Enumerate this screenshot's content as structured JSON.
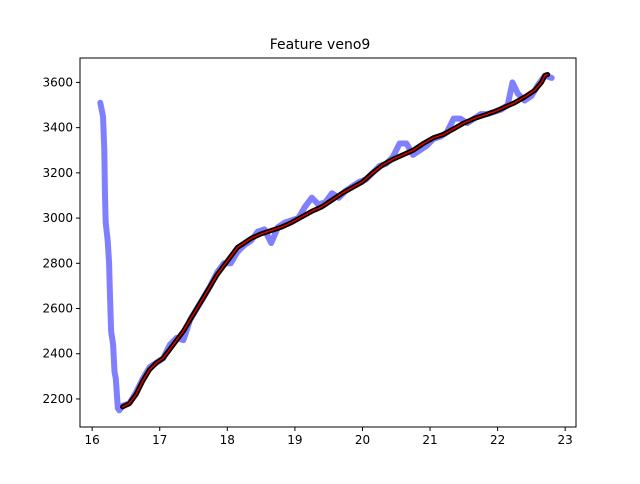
{
  "chart_data": {
    "type": "line",
    "title": "Feature veno9",
    "xlabel": "",
    "ylabel": "",
    "xlim": [
      15.82,
      23.16
    ],
    "ylim": [
      2076,
      3708
    ],
    "xticks": [
      16,
      17,
      18,
      19,
      20,
      21,
      22,
      23
    ],
    "yticks": [
      2200,
      2400,
      2600,
      2800,
      3000,
      3200,
      3400,
      3600
    ],
    "grid": false,
    "legend": "none",
    "series": [
      {
        "style": "raw",
        "color": "#8080ff",
        "points": [
          [
            16.12,
            3510
          ],
          [
            16.16,
            3450
          ],
          [
            16.18,
            3300
          ],
          [
            16.19,
            3100
          ],
          [
            16.2,
            2980
          ],
          [
            16.23,
            2900
          ],
          [
            16.25,
            2800
          ],
          [
            16.26,
            2700
          ],
          [
            16.27,
            2600
          ],
          [
            16.28,
            2500
          ],
          [
            16.31,
            2440
          ],
          [
            16.33,
            2320
          ],
          [
            16.35,
            2290
          ],
          [
            16.37,
            2200
          ],
          [
            16.38,
            2160
          ],
          [
            16.4,
            2150
          ],
          [
            16.45,
            2170
          ],
          [
            16.55,
            2180
          ],
          [
            16.65,
            2230
          ],
          [
            16.75,
            2290
          ],
          [
            16.85,
            2340
          ],
          [
            16.95,
            2360
          ],
          [
            17.05,
            2380
          ],
          [
            17.15,
            2440
          ],
          [
            17.25,
            2470
          ],
          [
            17.35,
            2460
          ],
          [
            17.45,
            2550
          ],
          [
            17.55,
            2600
          ],
          [
            17.65,
            2650
          ],
          [
            17.75,
            2700
          ],
          [
            17.85,
            2760
          ],
          [
            17.95,
            2800
          ],
          [
            18.05,
            2800
          ],
          [
            18.15,
            2850
          ],
          [
            18.25,
            2880
          ],
          [
            18.35,
            2900
          ],
          [
            18.45,
            2940
          ],
          [
            18.55,
            2950
          ],
          [
            18.65,
            2890
          ],
          [
            18.75,
            2960
          ],
          [
            18.85,
            2980
          ],
          [
            18.95,
            2990
          ],
          [
            19.05,
            3000
          ],
          [
            19.15,
            3050
          ],
          [
            19.25,
            3090
          ],
          [
            19.35,
            3060
          ],
          [
            19.45,
            3070
          ],
          [
            19.55,
            3110
          ],
          [
            19.65,
            3090
          ],
          [
            19.75,
            3120
          ],
          [
            19.85,
            3140
          ],
          [
            19.95,
            3160
          ],
          [
            20.05,
            3170
          ],
          [
            20.15,
            3200
          ],
          [
            20.25,
            3230
          ],
          [
            20.35,
            3240
          ],
          [
            20.45,
            3270
          ],
          [
            20.55,
            3330
          ],
          [
            20.65,
            3330
          ],
          [
            20.75,
            3280
          ],
          [
            20.85,
            3300
          ],
          [
            20.95,
            3320
          ],
          [
            21.05,
            3350
          ],
          [
            21.15,
            3360
          ],
          [
            21.25,
            3380
          ],
          [
            21.35,
            3440
          ],
          [
            21.45,
            3440
          ],
          [
            21.55,
            3420
          ],
          [
            21.65,
            3440
          ],
          [
            21.75,
            3460
          ],
          [
            21.85,
            3460
          ],
          [
            21.95,
            3470
          ],
          [
            22.05,
            3480
          ],
          [
            22.15,
            3500
          ],
          [
            22.22,
            3600
          ],
          [
            22.3,
            3550
          ],
          [
            22.4,
            3520
          ],
          [
            22.5,
            3540
          ],
          [
            22.6,
            3590
          ],
          [
            22.7,
            3630
          ],
          [
            22.8,
            3620
          ]
        ]
      },
      {
        "style": "smoothed",
        "color": "#000000",
        "points": [
          [
            16.45,
            2165
          ],
          [
            16.55,
            2180
          ],
          [
            16.65,
            2220
          ],
          [
            16.75,
            2280
          ],
          [
            16.85,
            2330
          ],
          [
            16.95,
            2360
          ],
          [
            17.05,
            2380
          ],
          [
            17.15,
            2420
          ],
          [
            17.25,
            2460
          ],
          [
            17.35,
            2500
          ],
          [
            17.45,
            2550
          ],
          [
            17.55,
            2600
          ],
          [
            17.65,
            2650
          ],
          [
            17.75,
            2700
          ],
          [
            17.85,
            2750
          ],
          [
            17.95,
            2790
          ],
          [
            18.05,
            2830
          ],
          [
            18.15,
            2870
          ],
          [
            18.25,
            2890
          ],
          [
            18.35,
            2910
          ],
          [
            18.5,
            2930
          ],
          [
            18.65,
            2945
          ],
          [
            18.8,
            2960
          ],
          [
            18.95,
            2980
          ],
          [
            19.1,
            3005
          ],
          [
            19.25,
            3030
          ],
          [
            19.4,
            3050
          ],
          [
            19.55,
            3080
          ],
          [
            19.7,
            3110
          ],
          [
            19.85,
            3135
          ],
          [
            20.0,
            3160
          ],
          [
            20.15,
            3200
          ],
          [
            20.3,
            3235
          ],
          [
            20.45,
            3260
          ],
          [
            20.6,
            3280
          ],
          [
            20.75,
            3300
          ],
          [
            20.9,
            3330
          ],
          [
            21.05,
            3355
          ],
          [
            21.2,
            3370
          ],
          [
            21.35,
            3395
          ],
          [
            21.5,
            3420
          ],
          [
            21.65,
            3440
          ],
          [
            21.8,
            3455
          ],
          [
            21.95,
            3470
          ],
          [
            22.1,
            3490
          ],
          [
            22.25,
            3510
          ],
          [
            22.4,
            3535
          ],
          [
            22.55,
            3565
          ],
          [
            22.65,
            3600
          ],
          [
            22.7,
            3630
          ],
          [
            22.74,
            3635
          ]
        ]
      },
      {
        "style": "fit",
        "color": "#dd0000",
        "points": [
          [
            16.45,
            2165
          ],
          [
            16.55,
            2180
          ],
          [
            16.65,
            2220
          ],
          [
            16.75,
            2280
          ],
          [
            16.85,
            2330
          ],
          [
            16.95,
            2360
          ],
          [
            17.05,
            2380
          ],
          [
            17.15,
            2420
          ],
          [
            17.25,
            2460
          ],
          [
            17.35,
            2500
          ],
          [
            17.45,
            2550
          ],
          [
            17.55,
            2600
          ],
          [
            17.65,
            2650
          ],
          [
            17.75,
            2700
          ],
          [
            17.85,
            2750
          ],
          [
            17.95,
            2790
          ],
          [
            18.05,
            2830
          ],
          [
            18.15,
            2870
          ],
          [
            18.25,
            2890
          ],
          [
            18.35,
            2910
          ],
          [
            18.5,
            2930
          ],
          [
            18.65,
            2945
          ],
          [
            18.8,
            2960
          ],
          [
            18.95,
            2980
          ],
          [
            19.1,
            3005
          ],
          [
            19.25,
            3030
          ],
          [
            19.4,
            3050
          ],
          [
            19.55,
            3080
          ],
          [
            19.7,
            3110
          ],
          [
            19.85,
            3135
          ],
          [
            20.0,
            3160
          ],
          [
            20.15,
            3200
          ],
          [
            20.3,
            3235
          ],
          [
            20.45,
            3260
          ],
          [
            20.6,
            3280
          ],
          [
            20.75,
            3300
          ],
          [
            20.9,
            3330
          ],
          [
            21.05,
            3355
          ],
          [
            21.2,
            3370
          ],
          [
            21.35,
            3395
          ],
          [
            21.5,
            3420
          ],
          [
            21.65,
            3440
          ],
          [
            21.8,
            3455
          ],
          [
            21.95,
            3470
          ],
          [
            22.1,
            3490
          ],
          [
            22.25,
            3510
          ],
          [
            22.4,
            3535
          ],
          [
            22.55,
            3565
          ],
          [
            22.65,
            3600
          ],
          [
            22.7,
            3630
          ],
          [
            22.74,
            3635
          ]
        ]
      }
    ]
  }
}
